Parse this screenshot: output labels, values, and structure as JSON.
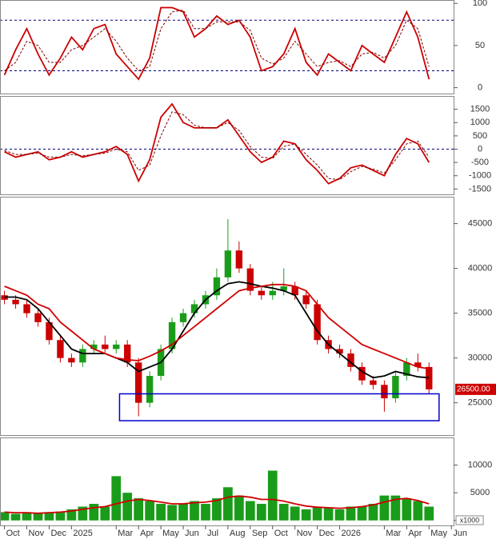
{
  "chart_data": [
    {
      "type": "line",
      "x": [
        0,
        0.5,
        1,
        1.5,
        2,
        2.5,
        3,
        3.5,
        4,
        4.5,
        5,
        5.5,
        6,
        6.5,
        7,
        7.5,
        8,
        8.5,
        9,
        9.5,
        10,
        10.5,
        11,
        11.5,
        12,
        12.5,
        13,
        13.5,
        14,
        14.5,
        15,
        15.5,
        16,
        16.5,
        17,
        17.5,
        18,
        18.5,
        19
      ],
      "xlim": [
        -0.2,
        20.1
      ],
      "ylim": [
        -7,
        104
      ],
      "yticks": [
        0,
        50,
        100
      ],
      "ref_lines": [
        20,
        80
      ],
      "series": [
        {
          "color": "#cc0000",
          "dashed": false,
          "values": [
            15,
            45,
            70,
            40,
            15,
            35,
            60,
            45,
            70,
            75,
            40,
            25,
            10,
            35,
            95,
            95,
            90,
            60,
            70,
            85,
            75,
            80,
            60,
            20,
            25,
            40,
            70,
            30,
            15,
            40,
            30,
            20,
            50,
            40,
            30,
            60,
            90,
            60,
            10
          ]
        },
        {
          "color": "#800000",
          "dashed": true,
          "values": [
            20,
            30,
            55,
            50,
            30,
            30,
            45,
            50,
            60,
            70,
            55,
            35,
            20,
            25,
            70,
            90,
            92,
            70,
            70,
            78,
            78,
            78,
            68,
            35,
            28,
            35,
            55,
            40,
            25,
            30,
            32,
            25,
            40,
            42,
            35,
            50,
            80,
            70,
            25
          ]
        }
      ]
    },
    {
      "type": "line",
      "x": [
        0,
        0.5,
        1,
        1.5,
        2,
        2.5,
        3,
        3.5,
        4,
        4.5,
        5,
        5.5,
        6,
        6.5,
        7,
        7.5,
        8,
        8.5,
        9,
        9.5,
        10,
        10.5,
        11,
        11.5,
        12,
        12.5,
        13,
        13.5,
        14,
        14.5,
        15,
        15.5,
        16,
        16.5,
        17,
        17.5,
        18,
        18.5,
        19
      ],
      "xlim": [
        -0.2,
        20.1
      ],
      "ylim": [
        -1700,
        2000
      ],
      "yticks": [
        -1500,
        -1000,
        -500,
        0,
        500,
        1000,
        1500
      ],
      "ref_lines": [
        0
      ],
      "series": [
        {
          "color": "#cc0000",
          "dashed": false,
          "values": [
            -100,
            -300,
            -200,
            -100,
            -400,
            -300,
            -100,
            -300,
            -200,
            -100,
            100,
            -200,
            -1200,
            -400,
            1200,
            1700,
            1000,
            800,
            800,
            800,
            1100,
            500,
            -100,
            -500,
            -300,
            300,
            200,
            -400,
            -800,
            -1300,
            -1100,
            -700,
            -600,
            -800,
            -1000,
            -200,
            400,
            200,
            -500
          ]
        },
        {
          "color": "#800000",
          "dashed": true,
          "values": [
            -50,
            -200,
            -200,
            -150,
            -300,
            -300,
            -200,
            -250,
            -200,
            -150,
            0,
            -100,
            -800,
            -600,
            500,
            1400,
            1300,
            900,
            800,
            800,
            1000,
            700,
            100,
            -300,
            -350,
            100,
            200,
            -200,
            -600,
            -1100,
            -1150,
            -850,
            -650,
            -750,
            -900,
            -400,
            200,
            300,
            -300
          ]
        }
      ]
    },
    {
      "type": "candlestick",
      "x": [
        0,
        0.5,
        1,
        1.5,
        2,
        2.5,
        3,
        3.5,
        4,
        4.5,
        5,
        5.5,
        6,
        6.5,
        7,
        7.5,
        8,
        8.5,
        9,
        9.5,
        10,
        10.5,
        11,
        11.5,
        12,
        12.5,
        13,
        13.5,
        14,
        14.5,
        15,
        15.5,
        16,
        16.5,
        17,
        17.5,
        18,
        18.5,
        19
      ],
      "xlim": [
        -0.2,
        20.1
      ],
      "ylim": [
        21400,
        48000
      ],
      "yticks": [
        25000,
        30000,
        35000,
        40000,
        45000
      ],
      "up_color": "#1a9c1a",
      "down_color": "#cc0000",
      "open": [
        37000,
        36500,
        36000,
        35000,
        34000,
        32000,
        30000,
        29500,
        31000,
        31500,
        31000,
        31500,
        29500,
        25000,
        28000,
        31000,
        34000,
        35000,
        36000,
        37000,
        39000,
        42000,
        40000,
        37500,
        37000,
        37500,
        38000,
        37000,
        36000,
        32000,
        31000,
        30500,
        29000,
        27500,
        27000,
        25500,
        28000,
        29500,
        29000
      ],
      "high": [
        37500,
        37000,
        36500,
        35500,
        34500,
        32500,
        30500,
        31500,
        32000,
        32500,
        32000,
        32000,
        30000,
        28500,
        31500,
        34500,
        35500,
        36500,
        37500,
        40000,
        45500,
        43000,
        40500,
        38000,
        38500,
        40000,
        38500,
        37500,
        36500,
        32500,
        31500,
        31000,
        29500,
        28000,
        27500,
        28500,
        30000,
        30500,
        29500
      ],
      "low": [
        36000,
        35500,
        34500,
        33500,
        31500,
        29500,
        29000,
        29000,
        30500,
        30500,
        30500,
        29000,
        23500,
        24500,
        27500,
        30500,
        33500,
        34500,
        35500,
        36500,
        38500,
        39500,
        37000,
        36500,
        36500,
        37000,
        36500,
        35500,
        31500,
        30500,
        30000,
        28500,
        27000,
        26500,
        24000,
        25000,
        27500,
        28500,
        26000
      ],
      "close": [
        36500,
        36000,
        35000,
        34000,
        32000,
        30000,
        29500,
        31000,
        31500,
        31000,
        31500,
        29500,
        25000,
        28000,
        31000,
        34000,
        35000,
        36000,
        37000,
        39000,
        42000,
        40000,
        37500,
        37000,
        37500,
        38000,
        37000,
        36000,
        32000,
        31000,
        30500,
        29000,
        27500,
        27000,
        25500,
        28000,
        29500,
        29000,
        26500
      ],
      "overlays": [
        {
          "color": "#000000",
          "values": [
            36800,
            36800,
            36500,
            35500,
            34000,
            32500,
            31000,
            30500,
            30500,
            30500,
            30000,
            29500,
            28500,
            29000,
            29500,
            31000,
            33000,
            35000,
            36500,
            37500,
            38300,
            38500,
            38300,
            38000,
            37800,
            37500,
            37000,
            35000,
            33000,
            31500,
            30500,
            29500,
            28500,
            27800,
            28000,
            28500,
            28200,
            27900,
            27800
          ]
        },
        {
          "color": "#d00000",
          "values": [
            38000,
            37500,
            37000,
            36000,
            35500,
            34000,
            33000,
            32000,
            31000,
            30500,
            30000,
            29800,
            29700,
            30200,
            30800,
            31500,
            32500,
            33500,
            34500,
            35500,
            36500,
            37500,
            37800,
            38000,
            38200,
            38200,
            38000,
            37500,
            36000,
            34500,
            33500,
            32500,
            31500,
            31000,
            30500,
            30000,
            29500,
            29000,
            28800
          ]
        }
      ],
      "highlight": {
        "x": [
          5.15,
          19.45
        ],
        "y": [
          23000,
          26000
        ],
        "color": "#0000cc"
      },
      "last_label": {
        "value": 26500,
        "label": "26500.00"
      }
    },
    {
      "type": "bar",
      "x": [
        0,
        0.5,
        1,
        1.5,
        2,
        2.5,
        3,
        3.5,
        4,
        4.5,
        5,
        5.5,
        6,
        6.5,
        7,
        7.5,
        8,
        8.5,
        9,
        9.5,
        10,
        10.5,
        11,
        11.5,
        12,
        12.5,
        13,
        13.5,
        14,
        14.5,
        15,
        15.5,
        16,
        16.5,
        17,
        17.5,
        18,
        18.5,
        19
      ],
      "xlim": [
        -0.2,
        20.1
      ],
      "ylim": [
        -900,
        15000
      ],
      "yticks": [
        0,
        5000,
        10000
      ],
      "color": "#1a9c1a",
      "values": [
        1500,
        1200,
        1500,
        1300,
        1500,
        1600,
        2000,
        2500,
        3000,
        2500,
        8000,
        5000,
        4000,
        3500,
        3000,
        2800,
        3000,
        3500,
        3000,
        4000,
        6000,
        4500,
        3500,
        3000,
        9000,
        3000,
        2500,
        2000,
        2500,
        2200,
        2000,
        2500,
        2500,
        3000,
        4500,
        4500,
        4000,
        3500,
        2500
      ],
      "overlays": [
        {
          "color": "#d00000",
          "values": [
            1500,
            1400,
            1400,
            1300,
            1400,
            1500,
            1700,
            2000,
            2300,
            2500,
            3000,
            3500,
            3800,
            3600,
            3300,
            3000,
            3000,
            3200,
            3300,
            3600,
            4200,
            4400,
            4200,
            3800,
            3800,
            3500,
            3000,
            2600,
            2400,
            2300,
            2200,
            2300,
            2500,
            2800,
            3300,
            3800,
            4000,
            3600,
            3000
          ]
        }
      ],
      "unit_label": "x1000",
      "xticks": [
        {
          "value": 0,
          "label": "Oct"
        },
        {
          "value": 1,
          "label": "Nov"
        },
        {
          "value": 2,
          "label": "Dec"
        },
        {
          "value": 3,
          "label": "2025"
        },
        {
          "value": 5,
          "label": "Mar"
        },
        {
          "value": 6,
          "label": "Apr"
        },
        {
          "value": 7,
          "label": "May"
        },
        {
          "value": 8,
          "label": "Jun"
        },
        {
          "value": 9,
          "label": "Jul"
        },
        {
          "value": 10,
          "label": "Aug"
        },
        {
          "value": 11,
          "label": "Sep"
        },
        {
          "value": 12,
          "label": "Oct"
        },
        {
          "value": 13,
          "label": "Nov"
        },
        {
          "value": 14,
          "label": "Dec"
        },
        {
          "value": 15,
          "label": "2026"
        },
        {
          "value": 17,
          "label": "Mar"
        },
        {
          "value": 18,
          "label": "Apr"
        },
        {
          "value": 19,
          "label": "May"
        },
        {
          "value": 20,
          "label": "Jun"
        }
      ]
    }
  ]
}
